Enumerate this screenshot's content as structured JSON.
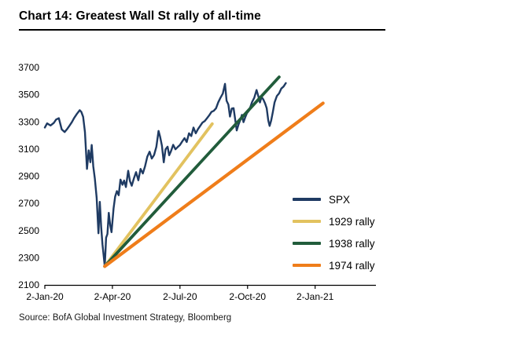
{
  "page": {
    "title": "Chart 14: Greatest Wall St rally of all-time",
    "source": "Source: BofA Global Investment Strategy, Bloomberg"
  },
  "chart_data": {
    "type": "line",
    "title": "Chart 14: Greatest Wall St rally of all-time",
    "grid": "off",
    "x_axis": {
      "unit": "months since 2-Jan-20",
      "range": [
        0,
        14.7
      ],
      "tick_positions": [
        0,
        3,
        6,
        9,
        12
      ],
      "tick_labels": [
        "2-Jan-20",
        "2-Apr-20",
        "2-Jul-20",
        "2-Oct-20",
        "2-Jan-21"
      ]
    },
    "y_axis": {
      "range": [
        2100,
        3700
      ],
      "ticks": [
        3700,
        3500,
        3300,
        3100,
        2900,
        2700,
        2500,
        2300,
        2100
      ]
    },
    "legend": {
      "position": "inside-right",
      "entries": [
        "SPX",
        "1929 rally",
        "1938 rally",
        "1974 rally"
      ]
    },
    "series": [
      {
        "name": "SPX",
        "color": "#1f3b63",
        "width": 2.4,
        "points": [
          [
            0,
            3258
          ],
          [
            0.1,
            3289
          ],
          [
            0.25,
            3273
          ],
          [
            0.4,
            3293
          ],
          [
            0.5,
            3317
          ],
          [
            0.62,
            3327
          ],
          [
            0.75,
            3244
          ],
          [
            0.88,
            3225
          ],
          [
            1.0,
            3249
          ],
          [
            1.1,
            3273
          ],
          [
            1.2,
            3298
          ],
          [
            1.3,
            3328
          ],
          [
            1.42,
            3358
          ],
          [
            1.55,
            3386
          ],
          [
            1.62,
            3373
          ],
          [
            1.7,
            3337
          ],
          [
            1.78,
            3226
          ],
          [
            1.87,
            2954
          ],
          [
            1.95,
            3090
          ],
          [
            2.02,
            3003
          ],
          [
            2.08,
            3130
          ],
          [
            2.15,
            2972
          ],
          [
            2.22,
            2882
          ],
          [
            2.3,
            2741
          ],
          [
            2.38,
            2480
          ],
          [
            2.44,
            2711
          ],
          [
            2.5,
            2529
          ],
          [
            2.56,
            2398
          ],
          [
            2.62,
            2305
          ],
          [
            2.66,
            2237
          ],
          [
            2.72,
            2447
          ],
          [
            2.78,
            2475
          ],
          [
            2.84,
            2630
          ],
          [
            2.9,
            2541
          ],
          [
            2.96,
            2488
          ],
          [
            3.05,
            2663
          ],
          [
            3.12,
            2750
          ],
          [
            3.2,
            2790
          ],
          [
            3.28,
            2760
          ],
          [
            3.36,
            2875
          ],
          [
            3.45,
            2837
          ],
          [
            3.52,
            2868
          ],
          [
            3.6,
            2820
          ],
          [
            3.7,
            2940
          ],
          [
            3.78,
            2863
          ],
          [
            3.86,
            2830
          ],
          [
            3.95,
            2881
          ],
          [
            4.05,
            2930
          ],
          [
            4.15,
            2870
          ],
          [
            4.25,
            2954
          ],
          [
            4.35,
            2920
          ],
          [
            4.45,
            2972
          ],
          [
            4.55,
            3044
          ],
          [
            4.65,
            3080
          ],
          [
            4.75,
            3030
          ],
          [
            4.85,
            3056
          ],
          [
            4.95,
            3116
          ],
          [
            5.05,
            3233
          ],
          [
            5.12,
            3190
          ],
          [
            5.2,
            3124
          ],
          [
            5.28,
            3002
          ],
          [
            5.36,
            3098
          ],
          [
            5.45,
            3117
          ],
          [
            5.52,
            3054
          ],
          [
            5.6,
            3084
          ],
          [
            5.7,
            3131
          ],
          [
            5.8,
            3098
          ],
          [
            5.9,
            3115
          ],
          [
            6.0,
            3130
          ],
          [
            6.1,
            3156
          ],
          [
            6.2,
            3180
          ],
          [
            6.3,
            3152
          ],
          [
            6.4,
            3216
          ],
          [
            6.5,
            3196
          ],
          [
            6.6,
            3258
          ],
          [
            6.7,
            3216
          ],
          [
            6.8,
            3246
          ],
          [
            6.9,
            3271
          ],
          [
            7.0,
            3295
          ],
          [
            7.1,
            3306
          ],
          [
            7.2,
            3327
          ],
          [
            7.3,
            3349
          ],
          [
            7.4,
            3373
          ],
          [
            7.5,
            3381
          ],
          [
            7.6,
            3400
          ],
          [
            7.7,
            3444
          ],
          [
            7.8,
            3478
          ],
          [
            7.9,
            3508
          ],
          [
            8.0,
            3580
          ],
          [
            8.07,
            3455
          ],
          [
            8.15,
            3427
          ],
          [
            8.22,
            3339
          ],
          [
            8.3,
            3398
          ],
          [
            8.38,
            3401
          ],
          [
            8.45,
            3319
          ],
          [
            8.52,
            3237
          ],
          [
            8.6,
            3281
          ],
          [
            8.68,
            3315
          ],
          [
            8.75,
            3351
          ],
          [
            8.82,
            3298
          ],
          [
            8.9,
            3335
          ],
          [
            8.97,
            3363
          ],
          [
            9.05,
            3380
          ],
          [
            9.12,
            3408
          ],
          [
            9.2,
            3446
          ],
          [
            9.3,
            3477
          ],
          [
            9.4,
            3534
          ],
          [
            9.48,
            3488
          ],
          [
            9.55,
            3443
          ],
          [
            9.62,
            3483
          ],
          [
            9.7,
            3465
          ],
          [
            9.78,
            3435
          ],
          [
            9.85,
            3400
          ],
          [
            9.92,
            3310
          ],
          [
            9.98,
            3270
          ],
          [
            10.05,
            3310
          ],
          [
            10.12,
            3369
          ],
          [
            10.2,
            3443
          ],
          [
            10.3,
            3490
          ],
          [
            10.4,
            3510
          ],
          [
            10.5,
            3545
          ],
          [
            10.6,
            3560
          ],
          [
            10.7,
            3585
          ]
        ]
      },
      {
        "name": "1929 rally",
        "color": "#e2c25f",
        "width": 3.8,
        "points": [
          [
            2.66,
            2237
          ],
          [
            7.43,
            3285
          ]
        ]
      },
      {
        "name": "1938 rally",
        "color": "#215c3b",
        "width": 3.8,
        "points": [
          [
            2.66,
            2237
          ],
          [
            10.4,
            3630
          ]
        ]
      },
      {
        "name": "1974 rally",
        "color": "#ef7d1a",
        "width": 4.2,
        "points": [
          [
            2.66,
            2237
          ],
          [
            12.35,
            3437
          ]
        ]
      }
    ]
  }
}
